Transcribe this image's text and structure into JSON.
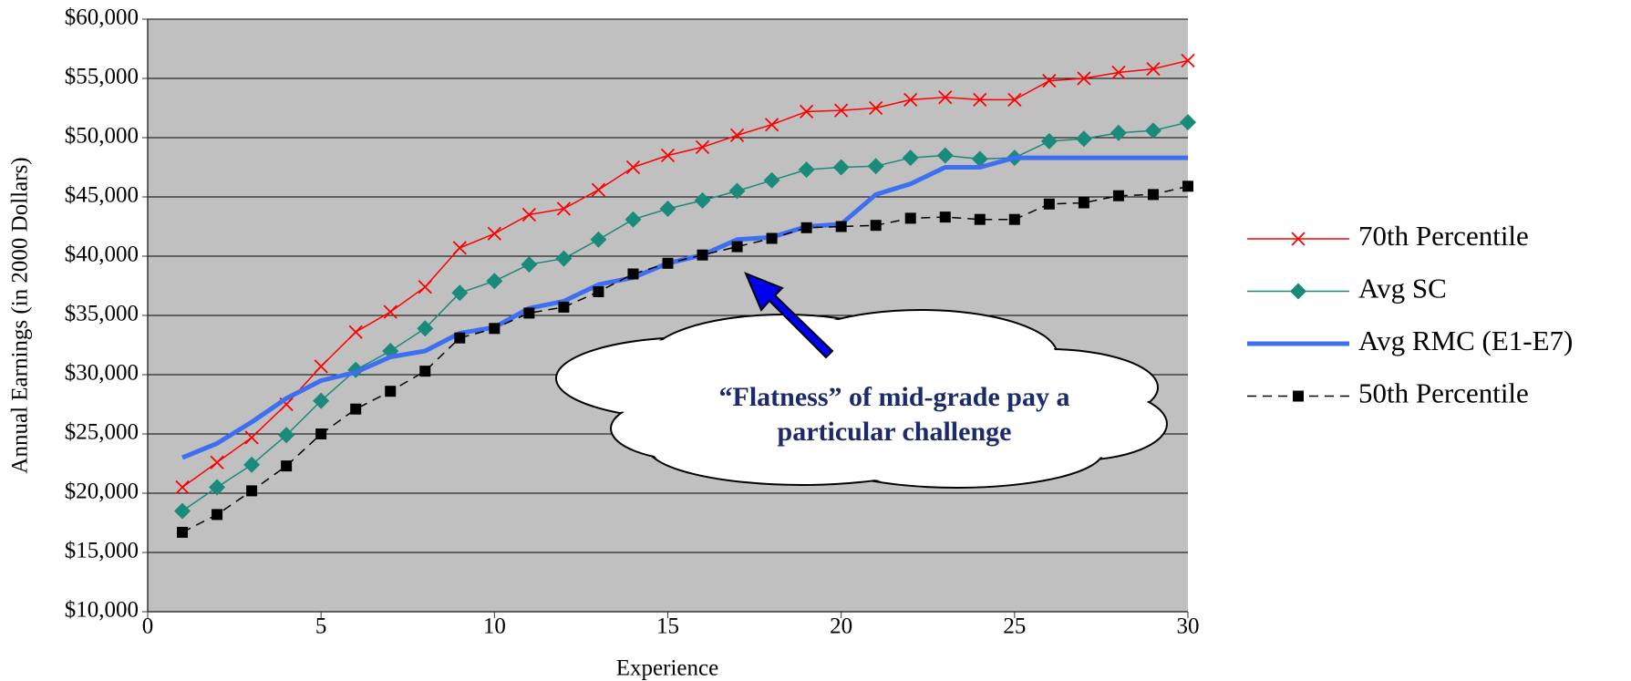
{
  "chart_data": {
    "type": "line",
    "y_label": "Annual Earnings (in 2000 Dollars)",
    "x_label": "Experience",
    "annotation": [
      "“Flatness” of mid-grade pay a",
      "particular challenge"
    ],
    "x": [
      1,
      2,
      3,
      4,
      5,
      6,
      7,
      8,
      9,
      10,
      11,
      12,
      13,
      14,
      15,
      16,
      17,
      18,
      19,
      20,
      21,
      22,
      23,
      24,
      25,
      26,
      27,
      28,
      29,
      30
    ],
    "series": [
      {
        "name": "70th Percentile",
        "color": "#ff0000",
        "marker": "x",
        "width": 1.5,
        "dash": false,
        "values": [
          20500,
          22600,
          24700,
          27500,
          30700,
          33600,
          35300,
          37400,
          40700,
          41900,
          43500,
          44000,
          45600,
          47500,
          48500,
          49200,
          50200,
          51100,
          52200,
          52300,
          52500,
          53200,
          53400,
          53200,
          53200,
          54800,
          55000,
          55500,
          55800,
          56500
        ]
      },
      {
        "name": "Avg SC",
        "color": "#1a8a7a",
        "marker": "diamond",
        "width": 1.5,
        "dash": false,
        "values": [
          18500,
          20500,
          22400,
          24900,
          27800,
          30400,
          32000,
          33900,
          36900,
          37900,
          39300,
          39800,
          41400,
          43100,
          44000,
          44700,
          45500,
          46400,
          47300,
          47500,
          47600,
          48300,
          48500,
          48200,
          48300,
          49700,
          49900,
          50400,
          50600,
          51300
        ]
      },
      {
        "name": "Avg RMC (E1-E7)",
        "color": "#3d6ff0",
        "marker": "none",
        "width": 5,
        "dash": false,
        "values": [
          23000,
          24200,
          26000,
          28000,
          29500,
          30200,
          31500,
          32000,
          33500,
          34000,
          35600,
          36200,
          37600,
          38200,
          39400,
          40100,
          41400,
          41600,
          42500,
          42700,
          45200,
          46100,
          47500,
          47500,
          48300,
          48300,
          48300,
          48300,
          48300,
          48300
        ]
      },
      {
        "name": "50th Percentile",
        "color": "#000000",
        "marker": "square",
        "width": 1.5,
        "dash": true,
        "values": [
          16700,
          18200,
          20200,
          22300,
          25000,
          27100,
          28600,
          30300,
          33100,
          33900,
          35200,
          35700,
          37000,
          38500,
          39400,
          40100,
          40800,
          41500,
          42400,
          42500,
          42600,
          43200,
          43300,
          43100,
          43100,
          44400,
          44500,
          45100,
          45200,
          45900
        ]
      }
    ],
    "xlim": [
      0,
      30
    ],
    "xticks": [
      0,
      5,
      10,
      15,
      20,
      25,
      30
    ],
    "ylim": [
      10000,
      60000
    ],
    "yticks": [
      {
        "value": 10000,
        "label": "$10,000"
      },
      {
        "value": 15000,
        "label": "$15,000"
      },
      {
        "value": 20000,
        "label": "$20,000"
      },
      {
        "value": 25000,
        "label": "$25,000"
      },
      {
        "value": 30000,
        "label": "$30,000"
      },
      {
        "value": 35000,
        "label": "$35,000"
      },
      {
        "value": 40000,
        "label": "$40,000"
      },
      {
        "value": 45000,
        "label": "$45,000"
      },
      {
        "value": 50000,
        "label": "$50,000"
      },
      {
        "value": 55000,
        "label": "$55,000"
      },
      {
        "value": 60000,
        "label": "$60,000"
      }
    ],
    "grid": true,
    "legend": "right"
  }
}
